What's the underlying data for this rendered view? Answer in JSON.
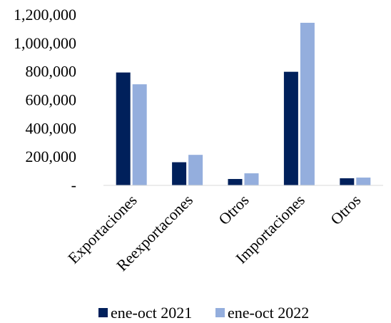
{
  "chart_data": {
    "type": "bar",
    "categories": [
      "Exportaciones",
      "Reexportacones",
      "Otros",
      "Importaciones",
      "Otros"
    ],
    "series": [
      {
        "name": "ene-oct 2021",
        "color": "#00205b",
        "values": [
          795000,
          163000,
          45000,
          800000,
          50000
        ]
      },
      {
        "name": "ene-oct 2022",
        "color": "#94aedd",
        "values": [
          712000,
          215000,
          85000,
          1145000,
          55000
        ]
      }
    ],
    "ylim": [
      0,
      1200000
    ],
    "yticks": [
      0,
      200000,
      400000,
      600000,
      800000,
      1000000,
      1200000
    ],
    "ytick_labels": [
      "-",
      "200,000",
      "400,000",
      "600,000",
      "800,000",
      "1,000,000",
      "1,200,000"
    ],
    "grid": false,
    "legend_position": "bottom",
    "title": "",
    "xlabel": "",
    "ylabel": ""
  }
}
